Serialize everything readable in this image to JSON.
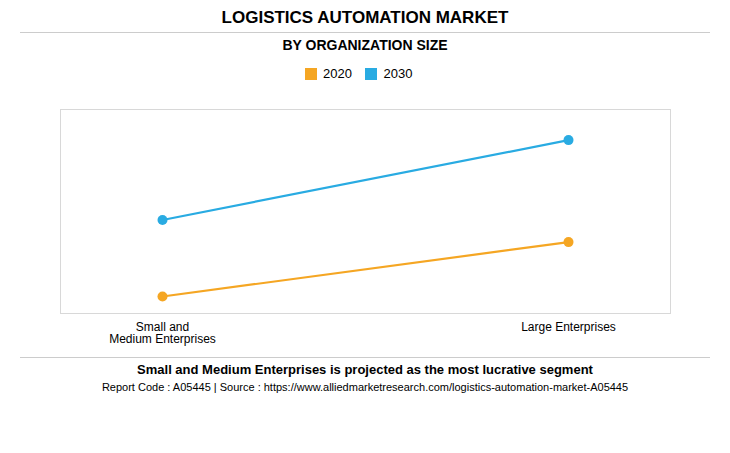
{
  "chart_data": {
    "type": "line",
    "title": "LOGISTICS AUTOMATION MARKET",
    "subtitle": "BY ORGANIZATION SIZE",
    "categories": [
      "Small and\nMedium Enterprises",
      "Large Enterprises"
    ],
    "series": [
      {
        "name": "2020",
        "color": "#F5A623",
        "marker": "circle",
        "values": [
          1.0,
          4.2
        ]
      },
      {
        "name": "2030",
        "color": "#29ABE2",
        "marker": "circle",
        "values": [
          5.5,
          10.2
        ]
      }
    ],
    "ylim": [
      0,
      12
    ],
    "yticks": [],
    "grid": false,
    "legend": "top",
    "tick_labels": "x",
    "annotations": [
      "Small and Medium Enterprises is projected as the most lucrative segment",
      "Report Code : A05445  |  Source : https://www.alliedmarketresearch.com/logistics-automation-market-A05445"
    ]
  }
}
